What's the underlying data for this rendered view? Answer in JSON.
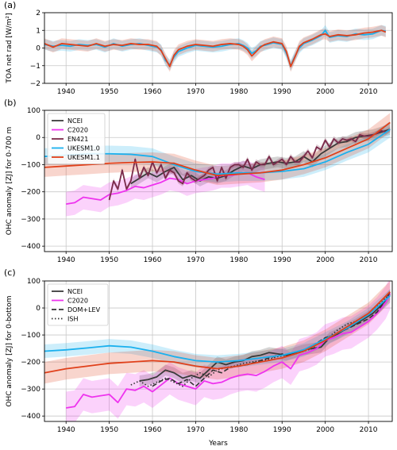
{
  "colors": {
    "NCEI": "#3a3a3a",
    "C2020": "#ee33ee",
    "EN421": "#7a2a4a",
    "UKESM1.0": "#1ab0ee",
    "UKESM1.1": "#e0401a",
    "DOM+LEV": "#333333",
    "ISH": "#333333"
  },
  "xlabel": "Years",
  "chart_data": [
    {
      "type": "line",
      "panel_label": "(a)",
      "ylabel": "TOA net rad [W/m²]",
      "xlim": [
        1935,
        2015.5
      ],
      "ylim": [
        -2,
        2
      ],
      "xticks": [
        1940,
        1950,
        1960,
        1970,
        1980,
        1990,
        2000,
        2010
      ],
      "yticks": [
        -2,
        -1,
        0,
        1,
        2
      ],
      "grid": true,
      "legend": null,
      "series": [
        {
          "key": "UKESM1.0",
          "x": [
            1935,
            1937,
            1939,
            1941,
            1943,
            1945,
            1947,
            1949,
            1951,
            1953,
            1955,
            1957,
            1959,
            1961,
            1962,
            1963,
            1964,
            1965,
            1966,
            1968,
            1970,
            1972,
            1974,
            1976,
            1978,
            1980,
            1981,
            1982,
            1983,
            1984,
            1985,
            1986,
            1988,
            1990,
            1991,
            1992,
            1993,
            1994,
            1995,
            1997,
            1999,
            2000,
            2001,
            2003,
            2005,
            2007,
            2009,
            2011,
            2013,
            2014
          ],
          "y": [
            0.2,
            0.1,
            0.15,
            0.1,
            0.2,
            0.15,
            0.2,
            0.05,
            0.25,
            0.1,
            0.2,
            0.25,
            0.15,
            0.05,
            -0.1,
            -0.7,
            -0.95,
            -0.5,
            -0.2,
            0.0,
            0.15,
            0.1,
            0.05,
            0.1,
            0.2,
            0.25,
            0.15,
            0.0,
            -0.3,
            -0.15,
            0.1,
            0.15,
            0.3,
            0.2,
            -0.3,
            -1.0,
            -0.45,
            0.0,
            0.25,
            0.45,
            0.7,
            1.0,
            0.6,
            0.7,
            0.65,
            0.8,
            0.75,
            0.8,
            1.0,
            0.95
          ],
          "band": 0.3
        },
        {
          "key": "UKESM1.1",
          "x": [
            1935,
            1937,
            1939,
            1941,
            1943,
            1945,
            1947,
            1949,
            1951,
            1953,
            1955,
            1957,
            1959,
            1961,
            1962,
            1963,
            1964,
            1965,
            1966,
            1968,
            1970,
            1972,
            1974,
            1976,
            1978,
            1980,
            1981,
            1982,
            1983,
            1984,
            1985,
            1986,
            1988,
            1990,
            1991,
            1992,
            1993,
            1994,
            1995,
            1997,
            1999,
            2000,
            2001,
            2003,
            2005,
            2007,
            2009,
            2011,
            2013,
            2014
          ],
          "y": [
            0.25,
            0.05,
            0.25,
            0.2,
            0.15,
            0.1,
            0.25,
            0.1,
            0.2,
            0.15,
            0.25,
            0.2,
            0.2,
            0.1,
            -0.15,
            -0.6,
            -1.05,
            -0.4,
            -0.1,
            0.1,
            0.2,
            0.15,
            0.1,
            0.2,
            0.25,
            0.2,
            0.1,
            -0.1,
            -0.45,
            -0.2,
            0.05,
            0.2,
            0.35,
            0.25,
            -0.2,
            -1.05,
            -0.5,
            0.1,
            0.3,
            0.5,
            0.75,
            0.8,
            0.65,
            0.75,
            0.7,
            0.75,
            0.85,
            0.9,
            1.0,
            0.9
          ],
          "band": 0.3
        }
      ]
    },
    {
      "type": "line",
      "panel_label": "(b)",
      "ylabel": "OHC anomaly [ZJ] for 0-700 m",
      "xlim": [
        1935,
        2015.5
      ],
      "ylim": [
        -420,
        100
      ],
      "xticks": [
        1940,
        1950,
        1960,
        1970,
        1980,
        1990,
        2000,
        2010
      ],
      "yticks": [
        -400,
        -300,
        -200,
        -100,
        0,
        100
      ],
      "grid": true,
      "legend": "top-left",
      "series": [
        {
          "key": "NCEI",
          "name": "NCEI",
          "x": [
            1955,
            1957,
            1959,
            1961,
            1963,
            1965,
            1967,
            1969,
            1971,
            1973,
            1975,
            1977,
            1979,
            1981,
            1983,
            1985,
            1987,
            1989,
            1991,
            1993,
            1995,
            1997,
            1999,
            2001,
            2003,
            2005,
            2007,
            2009,
            2011,
            2013,
            2015
          ],
          "y": [
            -170,
            -150,
            -130,
            -145,
            -125,
            -110,
            -155,
            -140,
            -160,
            -145,
            -150,
            -140,
            -120,
            -105,
            -115,
            -100,
            -95,
            -90,
            -95,
            -90,
            -70,
            -90,
            -60,
            -40,
            -20,
            -15,
            0,
            5,
            10,
            20,
            30
          ],
          "band": 20
        },
        {
          "key": "C2020",
          "name": "C2020",
          "x": [
            1940,
            1942,
            1944,
            1946,
            1948,
            1950,
            1952,
            1954,
            1956,
            1958,
            1960,
            1962,
            1964,
            1966,
            1968,
            1970,
            1972,
            1974,
            1976,
            1978,
            1980,
            1982,
            1984,
            1986
          ],
          "y": [
            -245,
            -240,
            -220,
            -225,
            -230,
            -210,
            -205,
            -195,
            -180,
            -185,
            -175,
            -165,
            -150,
            -155,
            -170,
            -160,
            -155,
            -150,
            -140,
            -140,
            -135,
            -130,
            -145,
            -155
          ],
          "band": 45
        },
        {
          "key": "EN421",
          "name": "EN421",
          "x": [
            1950,
            1951,
            1952,
            1953,
            1954,
            1955,
            1956,
            1957,
            1958,
            1959,
            1960,
            1961,
            1962,
            1963,
            1964,
            1965,
            1966,
            1967,
            1968,
            1969,
            1970,
            1971,
            1972,
            1973,
            1974,
            1975,
            1976,
            1977,
            1978,
            1979,
            1980,
            1981,
            1982,
            1983,
            1984,
            1985,
            1986,
            1987,
            1988,
            1989,
            1990,
            1991,
            1992,
            1993,
            1994,
            1995,
            1996,
            1997,
            1998,
            1999,
            2000,
            2001,
            2002,
            2003,
            2004,
            2005,
            2006,
            2007,
            2008,
            2009,
            2010,
            2011,
            2012,
            2013,
            2014,
            2015
          ],
          "y": [
            -230,
            -160,
            -190,
            -120,
            -190,
            -160,
            -80,
            -150,
            -110,
            -140,
            -90,
            -130,
            -100,
            -150,
            -120,
            -130,
            -160,
            -170,
            -130,
            -150,
            -160,
            -150,
            -140,
            -120,
            -110,
            -160,
            -110,
            -150,
            -110,
            -100,
            -100,
            -110,
            -80,
            -120,
            -90,
            -100,
            -100,
            -70,
            -100,
            -90,
            -80,
            -100,
            -70,
            -90,
            -90,
            -70,
            -50,
            -75,
            -35,
            -45,
            -10,
            -35,
            -5,
            -20,
            -5,
            -10,
            -5,
            -15,
            10,
            5,
            5,
            10,
            15,
            25,
            20,
            30
          ],
          "band": 10
        },
        {
          "key": "UKESM1.0",
          "name": "UKESM1.0",
          "x": [
            1935,
            1940,
            1945,
            1950,
            1955,
            1960,
            1965,
            1970,
            1975,
            1980,
            1985,
            1990,
            1995,
            2000,
            2005,
            2010,
            2015
          ],
          "y": [
            -70,
            -65,
            -60,
            -60,
            -62,
            -70,
            -100,
            -125,
            -135,
            -130,
            -130,
            -125,
            -115,
            -90,
            -55,
            -25,
            30
          ],
          "band": 30
        },
        {
          "key": "UKESM1.1",
          "name": "UKESM1.1",
          "x": [
            1935,
            1940,
            1945,
            1950,
            1955,
            1960,
            1965,
            1970,
            1975,
            1980,
            1985,
            1990,
            1995,
            2000,
            2005,
            2010,
            2015
          ],
          "y": [
            -110,
            -105,
            -100,
            -95,
            -92,
            -90,
            -95,
            -120,
            -140,
            -135,
            -130,
            -120,
            -100,
            -75,
            -40,
            -5,
            55
          ],
          "band": 35
        }
      ]
    },
    {
      "type": "line",
      "panel_label": "(c)",
      "ylabel": "OHC anomaly [ZJ] for 0-bottom",
      "xlim": [
        1935,
        2015.5
      ],
      "ylim": [
        -420,
        100
      ],
      "xticks": [
        1940,
        1950,
        1960,
        1970,
        1980,
        1990,
        2000,
        2010
      ],
      "yticks": [
        -400,
        -300,
        -200,
        -100,
        0,
        100
      ],
      "grid": true,
      "legend": "top-left",
      "series": [
        {
          "key": "NCEI",
          "name": "NCEI",
          "x": [
            1957,
            1959,
            1961,
            1963,
            1965,
            1967,
            1969,
            1971,
            1973,
            1975,
            1977,
            1979,
            1981,
            1983,
            1985,
            1987,
            1989,
            1991,
            1993,
            1995,
            1997,
            1999,
            2001,
            2003,
            2005,
            2007,
            2009,
            2011,
            2013,
            2015
          ],
          "y": [
            -270,
            -265,
            -255,
            -230,
            -240,
            -260,
            -250,
            -260,
            -230,
            -200,
            -210,
            -200,
            -195,
            -180,
            -175,
            -165,
            -170,
            -175,
            -165,
            -155,
            -150,
            -145,
            -110,
            -95,
            -75,
            -60,
            -40,
            -20,
            10,
            50
          ],
          "band": 20
        },
        {
          "key": "C2020",
          "name": "C2020",
          "x": [
            1940,
            1942,
            1944,
            1946,
            1948,
            1950,
            1952,
            1954,
            1956,
            1958,
            1960,
            1962,
            1964,
            1966,
            1968,
            1970,
            1972,
            1974,
            1976,
            1978,
            1980,
            1982,
            1984,
            1986,
            1988,
            1990,
            1992,
            1994,
            1996,
            1998,
            2000,
            2002,
            2004,
            2006,
            2008,
            2010,
            2012,
            2014,
            2015
          ],
          "y": [
            -370,
            -365,
            -320,
            -330,
            -325,
            -320,
            -350,
            -300,
            -305,
            -290,
            -310,
            -285,
            -260,
            -280,
            -290,
            -300,
            -270,
            -280,
            -275,
            -260,
            -250,
            -245,
            -250,
            -235,
            -215,
            -200,
            -225,
            -175,
            -165,
            -150,
            -120,
            -110,
            -95,
            -90,
            -70,
            -50,
            -20,
            20,
            55
          ],
          "band": 60
        },
        {
          "key": "DOM+LEV",
          "name": "DOM+LEV",
          "dash": "6,3",
          "x": [
            1960,
            1962,
            1964,
            1966,
            1968,
            1970,
            1972,
            1974,
            1976,
            1978,
            1980,
            1982,
            1984,
            1986,
            1988,
            1990,
            1992,
            1994,
            1996,
            1998,
            2000,
            2002,
            2004,
            2006,
            2008,
            2010,
            2012,
            2014,
            2015
          ],
          "y": [
            -290,
            -270,
            -260,
            -280,
            -265,
            -290,
            -260,
            -230,
            -240,
            -220,
            -215,
            -210,
            -200,
            -190,
            -180,
            -170,
            -175,
            -165,
            -150,
            -130,
            -110,
            -100,
            -85,
            -70,
            -55,
            -40,
            -15,
            30,
            60
          ],
          "band": 0
        },
        {
          "key": "ISH",
          "name": "ISH",
          "dash": "1.5,2.5",
          "x": [
            1955,
            1957,
            1959,
            1961,
            1963,
            1965,
            1967,
            1969,
            1971,
            1973,
            1975,
            1977,
            1979,
            1981,
            1983,
            1985,
            1987,
            1989,
            1991,
            1993,
            1995,
            1997,
            1999,
            2001,
            2003,
            2005,
            2007,
            2009,
            2011,
            2013,
            2015
          ],
          "y": [
            -285,
            -270,
            -290,
            -275,
            -260,
            -275,
            -290,
            -260,
            -240,
            -255,
            -230,
            -220,
            -215,
            -205,
            -200,
            -195,
            -190,
            -180,
            -175,
            -170,
            -160,
            -150,
            -120,
            -105,
            -80,
            -60,
            -50,
            -30,
            -10,
            20,
            55
          ],
          "band": 0
        },
        {
          "key": "UKESM1.0",
          "x": [
            1935,
            1940,
            1945,
            1950,
            1955,
            1960,
            1965,
            1970,
            1975,
            1980,
            1985,
            1990,
            1995,
            2000,
            2005,
            2010,
            2015
          ],
          "y": [
            -160,
            -155,
            -148,
            -140,
            -145,
            -160,
            -180,
            -195,
            -200,
            -195,
            -185,
            -175,
            -155,
            -115,
            -75,
            -25,
            45
          ],
          "band": 25
        },
        {
          "key": "UKESM1.1",
          "x": [
            1935,
            1940,
            1945,
            1950,
            1955,
            1960,
            1965,
            1970,
            1975,
            1980,
            1985,
            1990,
            1995,
            2000,
            2005,
            2010,
            2015
          ],
          "y": [
            -240,
            -225,
            -215,
            -205,
            -200,
            -195,
            -200,
            -215,
            -225,
            -215,
            -200,
            -185,
            -160,
            -120,
            -70,
            -20,
            60
          ],
          "band": 40
        }
      ]
    }
  ]
}
